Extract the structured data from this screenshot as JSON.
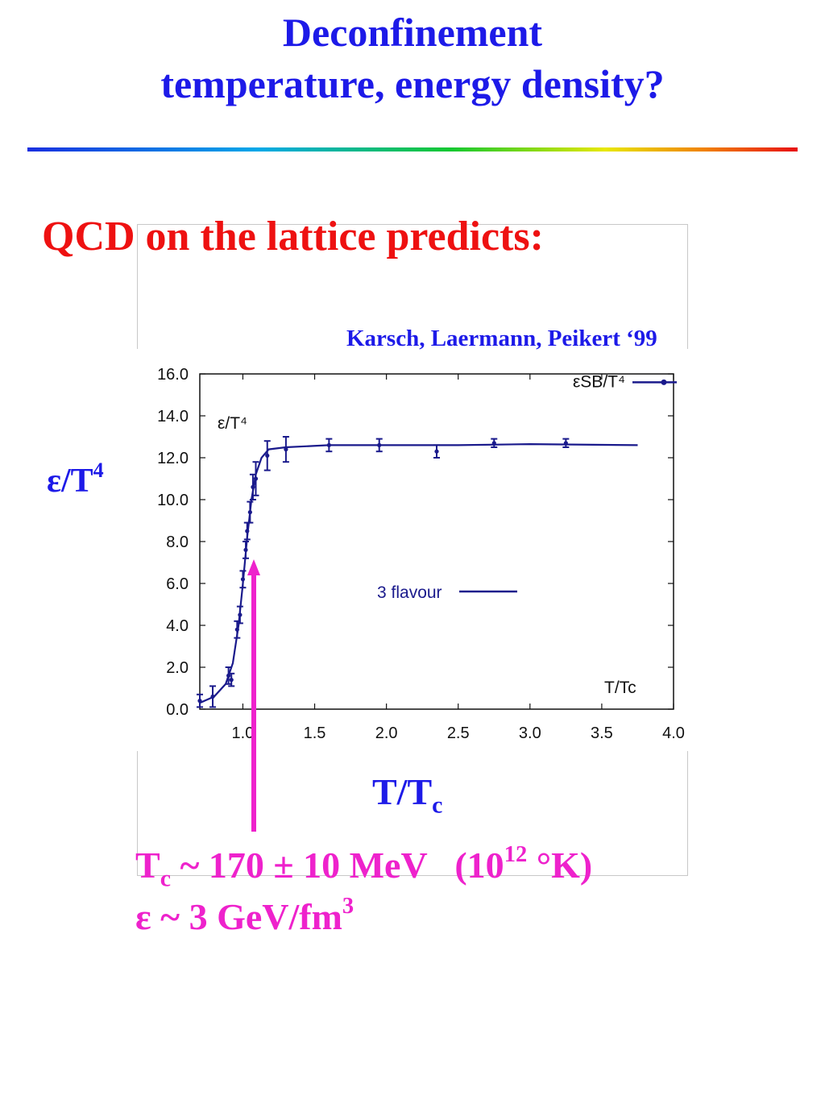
{
  "slide": {
    "title_line1": "Deconfinement",
    "title_line2": "temperature, energy density?",
    "heading": "QCD on the lattice predicts:",
    "citation": "Karsch, Laermann, Peikert ‘99",
    "ylabel_base": "ε/T",
    "ylabel_sup": "4",
    "xlabel_base": "T/T",
    "xlabel_sub": "c",
    "result1_a": "T",
    "result1_sub": "c",
    "result1_b": " ~ 170 ± 10 MeV   (10",
    "result1_sup": "12",
    "result1_c": " °K)",
    "result2_a": "ε ~ 3 GeV/fm",
    "result2_sup": "3",
    "colors": {
      "title": "#1d1ae8",
      "heading": "#ee1111",
      "result": "#ee22cc",
      "curve": "#1a1a8c"
    }
  },
  "chart_data": {
    "type": "line",
    "xlim": [
      0.7,
      4.0
    ],
    "ylim": [
      0.0,
      16.0
    ],
    "x_ticks": [
      "1.0",
      "1.5",
      "2.0",
      "2.5",
      "3.0",
      "3.5",
      "4.0"
    ],
    "y_ticks": [
      "0.0",
      "2.0",
      "4.0",
      "6.0",
      "8.0",
      "10.0",
      "12.0",
      "14.0",
      "16.0"
    ],
    "inplot_ylabel": "ε/T⁴",
    "inplot_xlabel": "T/Tc",
    "sb_label": "εSB/T⁴",
    "sb_value": 15.6,
    "legend": "3 flavour",
    "series": [
      {
        "name": "3 flavour",
        "points": [
          {
            "x": 0.7,
            "y": 0.4,
            "err": 0.3
          },
          {
            "x": 0.79,
            "y": 0.6,
            "err": 0.5
          },
          {
            "x": 0.9,
            "y": 1.6,
            "err": 0.4
          },
          {
            "x": 0.92,
            "y": 1.4,
            "err": 0.3
          },
          {
            "x": 0.96,
            "y": 3.8,
            "err": 0.4
          },
          {
            "x": 0.98,
            "y": 4.5,
            "err": 0.4
          },
          {
            "x": 1.0,
            "y": 6.2,
            "err": 0.4
          },
          {
            "x": 1.02,
            "y": 7.6,
            "err": 0.4
          },
          {
            "x": 1.03,
            "y": 8.5,
            "err": 0.4
          },
          {
            "x": 1.05,
            "y": 9.4,
            "err": 0.5
          },
          {
            "x": 1.07,
            "y": 10.6,
            "err": 0.6
          },
          {
            "x": 1.09,
            "y": 11.0,
            "err": 0.8
          },
          {
            "x": 1.17,
            "y": 12.1,
            "err": 0.7
          },
          {
            "x": 1.3,
            "y": 12.4,
            "err": 0.6
          },
          {
            "x": 1.6,
            "y": 12.6,
            "err": 0.3
          },
          {
            "x": 1.95,
            "y": 12.6,
            "err": 0.3
          },
          {
            "x": 2.35,
            "y": 12.3,
            "err": 0.3
          },
          {
            "x": 2.75,
            "y": 12.7,
            "err": 0.2
          },
          {
            "x": 3.25,
            "y": 12.7,
            "err": 0.2
          }
        ],
        "curve": [
          [
            0.7,
            0.3
          ],
          [
            0.8,
            0.6
          ],
          [
            0.88,
            1.2
          ],
          [
            0.93,
            2.2
          ],
          [
            0.97,
            4.0
          ],
          [
            1.0,
            6.0
          ],
          [
            1.03,
            8.2
          ],
          [
            1.06,
            10.0
          ],
          [
            1.09,
            11.2
          ],
          [
            1.13,
            12.0
          ],
          [
            1.18,
            12.4
          ],
          [
            1.3,
            12.5
          ],
          [
            1.6,
            12.6
          ],
          [
            2.0,
            12.6
          ],
          [
            2.5,
            12.6
          ],
          [
            3.0,
            12.65
          ],
          [
            3.75,
            12.6
          ]
        ]
      }
    ],
    "annotation": {
      "text": "Tc",
      "x": 1.02,
      "y": 7.6
    }
  }
}
